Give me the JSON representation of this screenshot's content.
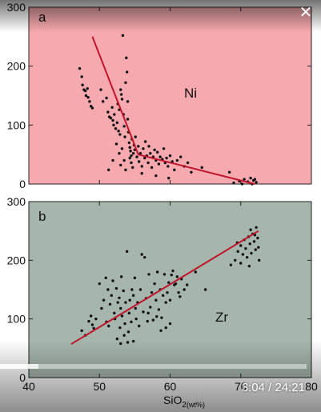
{
  "video": {
    "current_time": "3:04",
    "separator": " / ",
    "duration": "24:21",
    "progress_fraction": 0.126,
    "close_symbol": "✕"
  },
  "chart_data": [
    {
      "type": "scatter",
      "panel_label": "a",
      "annotation": "Ni",
      "xlabel": "SiO",
      "xlabel_subscript": "2",
      "xlabel_unit": "(wt%)",
      "xlim": [
        40,
        80
      ],
      "ylim": [
        0,
        300
      ],
      "x_ticks": [
        40,
        50,
        60,
        70,
        80
      ],
      "y_ticks": [
        0,
        100,
        200,
        300
      ],
      "background_color": "#f6a9ae",
      "point_color": "#111111",
      "line_color": "#c0142a",
      "trend_line": [
        [
          49,
          250
        ],
        [
          55.5,
          50
        ],
        [
          72,
          0
        ]
      ],
      "points": [
        [
          47.2,
          196
        ],
        [
          47.5,
          182
        ],
        [
          47.6,
          168
        ],
        [
          47.8,
          160
        ],
        [
          48.0,
          158
        ],
        [
          48.1,
          150
        ],
        [
          48.3,
          162
        ],
        [
          48.4,
          147
        ],
        [
          48.6,
          140
        ],
        [
          48.8,
          132
        ],
        [
          49.0,
          129
        ],
        [
          50.2,
          160
        ],
        [
          50.5,
          140
        ],
        [
          51.0,
          146
        ],
        [
          51.2,
          122
        ],
        [
          51.4,
          114
        ],
        [
          51.6,
          112
        ],
        [
          51.8,
          130
        ],
        [
          51.9,
          108
        ],
        [
          52.0,
          100
        ],
        [
          52.1,
          118
        ],
        [
          52.3,
          94
        ],
        [
          52.5,
          104
        ],
        [
          52.6,
          136
        ],
        [
          52.7,
          90
        ],
        [
          52.8,
          126
        ],
        [
          52.9,
          84
        ],
        [
          53.0,
          160
        ],
        [
          53.1,
          152
        ],
        [
          53.2,
          144
        ],
        [
          53.3,
          252
        ],
        [
          53.4,
          118
        ],
        [
          53.5,
          98
        ],
        [
          53.6,
          80
        ],
        [
          53.7,
          172
        ],
        [
          53.8,
          214
        ],
        [
          53.9,
          190
        ],
        [
          54.0,
          140
        ],
        [
          54.0,
          110
        ],
        [
          54.1,
          88
        ],
        [
          54.2,
          70
        ],
        [
          54.3,
          62
        ],
        [
          54.3,
          44
        ],
        [
          54.4,
          56
        ],
        [
          54.5,
          48
        ],
        [
          54.5,
          36
        ],
        [
          54.6,
          76
        ],
        [
          54.7,
          28
        ],
        [
          54.8,
          52
        ],
        [
          54.9,
          66
        ],
        [
          53.2,
          60
        ],
        [
          53.5,
          40
        ],
        [
          52.8,
          52
        ],
        [
          52.4,
          68
        ],
        [
          51.3,
          24
        ],
        [
          51.9,
          40
        ],
        [
          53.0,
          32
        ],
        [
          53.7,
          24
        ],
        [
          55.0,
          58
        ],
        [
          55.1,
          80
        ],
        [
          55.3,
          46
        ],
        [
          55.5,
          64
        ],
        [
          55.6,
          38
        ],
        [
          55.8,
          52
        ],
        [
          56.0,
          30
        ],
        [
          56.2,
          60
        ],
        [
          56.4,
          44
        ],
        [
          56.5,
          72
        ],
        [
          56.7,
          48
        ],
        [
          56.9,
          36
        ],
        [
          57.0,
          64
        ],
        [
          57.2,
          52
        ],
        [
          57.4,
          28
        ],
        [
          57.6,
          46
        ],
        [
          57.8,
          58
        ],
        [
          58.0,
          40
        ],
        [
          58.2,
          54
        ],
        [
          58.4,
          34
        ],
        [
          58.6,
          46
        ],
        [
          58.9,
          42
        ],
        [
          59.1,
          60
        ],
        [
          59.3,
          36
        ],
        [
          59.5,
          44
        ],
        [
          59.7,
          30
        ],
        [
          60.0,
          48
        ],
        [
          60.3,
          38
        ],
        [
          60.6,
          24
        ],
        [
          61.0,
          40
        ],
        [
          61.5,
          46
        ],
        [
          62.0,
          30
        ],
        [
          62.5,
          36
        ],
        [
          63.0,
          20
        ],
        [
          64.5,
          28
        ],
        [
          56.0,
          18
        ],
        [
          58.0,
          14
        ],
        [
          59.8,
          10
        ],
        [
          69.0,
          2
        ],
        [
          69.8,
          5
        ],
        [
          70.5,
          8
        ],
        [
          71.0,
          4
        ],
        [
          71.4,
          10
        ],
        [
          71.8,
          6
        ],
        [
          72.2,
          3
        ],
        [
          70.2,
          0
        ],
        [
          68.4,
          20
        ],
        [
          71.6,
          0
        ],
        [
          72.0,
          8
        ]
      ]
    },
    {
      "type": "scatter",
      "panel_label": "b",
      "annotation": "Zr",
      "xlabel": "SiO",
      "xlabel_subscript": "2",
      "xlabel_unit": "(wt%)",
      "xlim": [
        40,
        80
      ],
      "ylim": [
        0,
        300
      ],
      "x_ticks": [
        40,
        50,
        60,
        70,
        80
      ],
      "y_ticks": [
        0,
        100,
        200,
        300
      ],
      "background_color": "#a6b6ac",
      "point_color": "#111111",
      "line_color": "#c0142a",
      "trend_line": [
        [
          46,
          57
        ],
        [
          72.5,
          250
        ]
      ],
      "points": [
        [
          47.5,
          80
        ],
        [
          48.0,
          72
        ],
        [
          48.5,
          96
        ],
        [
          48.8,
          105
        ],
        [
          49.0,
          90
        ],
        [
          49.5,
          100
        ],
        [
          50.3,
          118
        ],
        [
          50.6,
          132
        ],
        [
          50.9,
          170
        ],
        [
          51.2,
          150
        ],
        [
          51.3,
          88
        ],
        [
          51.5,
          125
        ],
        [
          51.7,
          140
        ],
        [
          51.9,
          165
        ],
        [
          52.1,
          110
        ],
        [
          52.2,
          100
        ],
        [
          52.4,
          152
        ],
        [
          52.6,
          128
        ],
        [
          52.8,
          136
        ],
        [
          52.9,
          85
        ],
        [
          53.0,
          118
        ],
        [
          53.1,
          172
        ],
        [
          53.2,
          105
        ],
        [
          53.4,
          148
        ],
        [
          53.5,
          72
        ],
        [
          53.6,
          92
        ],
        [
          53.7,
          128
        ],
        [
          53.9,
          215
        ],
        [
          54.0,
          60
        ],
        [
          54.1,
          78
        ],
        [
          54.2,
          110
        ],
        [
          54.3,
          132
        ],
        [
          54.5,
          95
        ],
        [
          54.6,
          150
        ],
        [
          54.8,
          140
        ],
        [
          55.0,
          170
        ],
        [
          55.1,
          118
        ],
        [
          55.2,
          100
        ],
        [
          55.4,
          128
        ],
        [
          55.6,
          88
        ],
        [
          55.8,
          150
        ],
        [
          56.0,
          210
        ],
        [
          56.2,
          112
        ],
        [
          56.4,
          205
        ],
        [
          56.6,
          135
        ],
        [
          56.8,
          96
        ],
        [
          57.0,
          176
        ],
        [
          57.2,
          120
        ],
        [
          57.4,
          145
        ],
        [
          57.6,
          98
        ],
        [
          57.8,
          160
        ],
        [
          58.0,
          132
        ],
        [
          58.2,
          180
        ],
        [
          58.4,
          116
        ],
        [
          58.6,
          150
        ],
        [
          58.8,
          102
        ],
        [
          59.0,
          140
        ],
        [
          59.2,
          176
        ],
        [
          59.4,
          128
        ],
        [
          59.6,
          145
        ],
        [
          59.8,
          162
        ],
        [
          60.0,
          132
        ],
        [
          60.2,
          175
        ],
        [
          60.4,
          182
        ],
        [
          60.6,
          158
        ],
        [
          60.8,
          160
        ],
        [
          61.0,
          172
        ],
        [
          61.2,
          145
        ],
        [
          61.4,
          138
        ],
        [
          61.6,
          168
        ],
        [
          62.0,
          150
        ],
        [
          62.4,
          158
        ],
        [
          60.0,
          92
        ],
        [
          59.4,
          85
        ],
        [
          58.7,
          80
        ],
        [
          63.6,
          180
        ],
        [
          65.0,
          150
        ],
        [
          68.6,
          192
        ],
        [
          69.2,
          200
        ],
        [
          69.6,
          215
        ],
        [
          70.0,
          225
        ],
        [
          70.3,
          210
        ],
        [
          70.5,
          235
        ],
        [
          70.7,
          220
        ],
        [
          70.9,
          205
        ],
        [
          71.1,
          240
        ],
        [
          71.3,
          228
        ],
        [
          71.5,
          212
        ],
        [
          71.7,
          245
        ],
        [
          71.9,
          232
        ],
        [
          72.1,
          218
        ],
        [
          72.2,
          256
        ],
        [
          72.4,
          238
        ],
        [
          72.5,
          222
        ],
        [
          72.6,
          200
        ],
        [
          70.0,
          195
        ],
        [
          71.2,
          190
        ],
        [
          69.5,
          230
        ],
        [
          71.4,
          252
        ],
        [
          72.0,
          243
        ],
        [
          54.8,
          62
        ],
        [
          52.5,
          66
        ],
        [
          50.0,
          160
        ],
        [
          51.0,
          95
        ],
        [
          53.0,
          58
        ],
        [
          56.9,
          110
        ],
        [
          58.1,
          104
        ],
        [
          49.2,
          84
        ]
      ]
    }
  ]
}
